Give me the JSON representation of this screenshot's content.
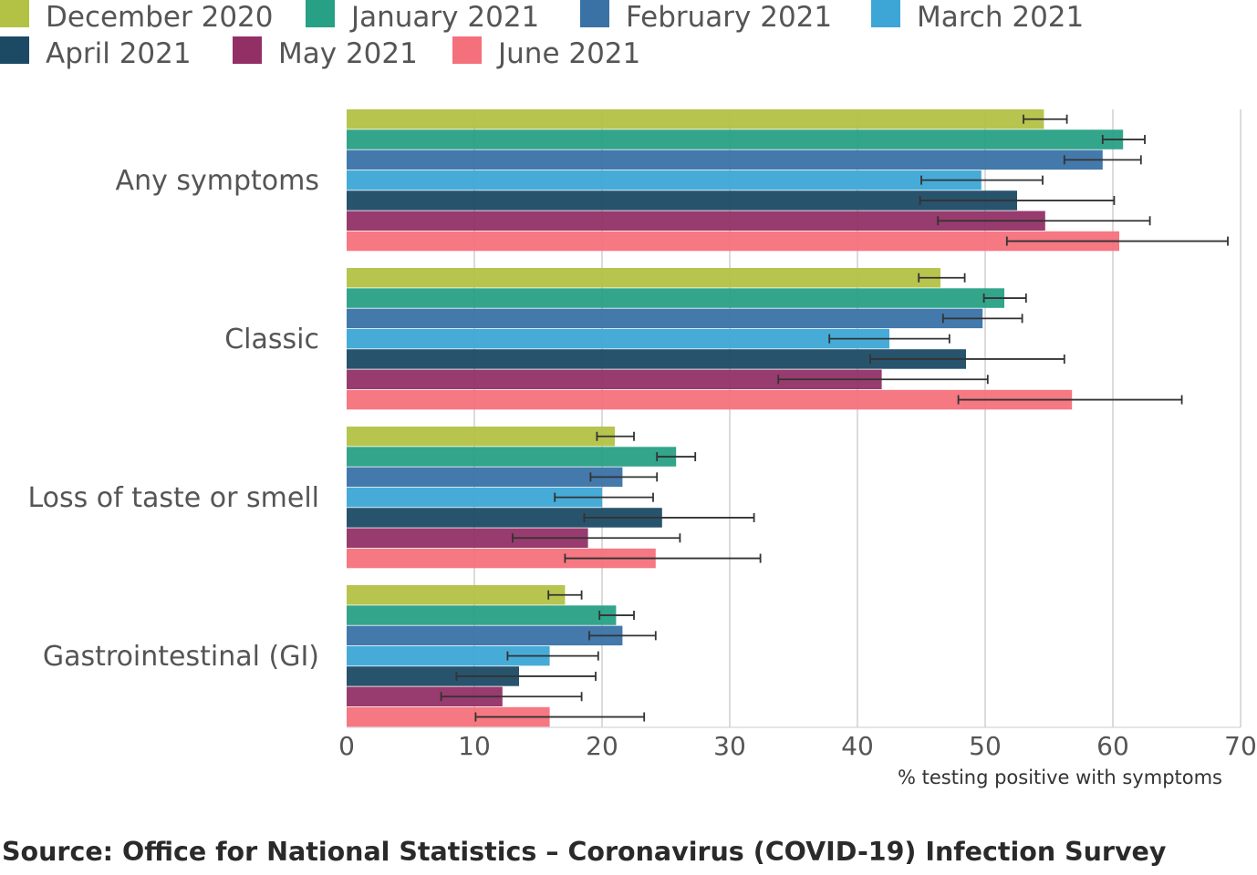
{
  "chart_data": {
    "type": "bar",
    "orientation": "horizontal",
    "categories": [
      "Any symptoms",
      "Classic",
      "Loss of taste or smell",
      "Gastrointestinal (GI)"
    ],
    "series": [
      {
        "name": "December 2020",
        "color": "#b3c145",
        "values": [
          54.6,
          46.5,
          21.0,
          17.1
        ],
        "ci_lower": [
          53.0,
          44.8,
          19.6,
          15.8
        ],
        "ci_upper": [
          56.4,
          48.4,
          22.5,
          18.4
        ]
      },
      {
        "name": "January 2021",
        "color": "#27a085",
        "values": [
          60.8,
          51.5,
          25.8,
          21.1
        ],
        "ci_lower": [
          59.2,
          49.9,
          24.3,
          19.8
        ],
        "ci_upper": [
          62.5,
          53.2,
          27.3,
          22.5
        ]
      },
      {
        "name": "February 2021",
        "color": "#3a72a6",
        "values": [
          59.2,
          49.8,
          21.6,
          21.6
        ],
        "ci_lower": [
          56.2,
          46.7,
          19.1,
          19.0
        ],
        "ci_upper": [
          62.2,
          52.9,
          24.3,
          24.2
        ]
      },
      {
        "name": "March 2021",
        "color": "#3da6d6",
        "values": [
          49.7,
          42.5,
          20.0,
          15.9
        ],
        "ci_lower": [
          45.0,
          37.8,
          16.3,
          12.6
        ],
        "ci_upper": [
          54.5,
          47.2,
          24.0,
          19.7
        ]
      },
      {
        "name": "April 2021",
        "color": "#1c4a64",
        "values": [
          52.5,
          48.5,
          24.7,
          13.5
        ],
        "ci_lower": [
          44.9,
          41.0,
          18.6,
          8.6
        ],
        "ci_upper": [
          60.1,
          56.2,
          31.9,
          19.5
        ]
      },
      {
        "name": "May 2021",
        "color": "#923066",
        "values": [
          54.7,
          41.9,
          18.9,
          12.2
        ],
        "ci_lower": [
          46.3,
          33.8,
          13.0,
          7.4
        ],
        "ci_upper": [
          62.9,
          50.2,
          26.1,
          18.4
        ]
      },
      {
        "name": "June 2021",
        "color": "#f4717c",
        "values": [
          60.5,
          56.8,
          24.2,
          15.9
        ],
        "ci_lower": [
          51.7,
          47.9,
          17.1,
          10.1
        ],
        "ci_upper": [
          69.0,
          65.4,
          32.4,
          23.3
        ]
      }
    ],
    "xlim": [
      0,
      70
    ],
    "xticks": [
      "0",
      "10",
      "20",
      "30",
      "40",
      "50",
      "60",
      "70"
    ],
    "xlabel": "% testing positive with symptoms",
    "grid": true,
    "legend_position": "top"
  },
  "source": "Source: Office for National Statistics – Coronavirus (COVID-19) Infection Survey"
}
